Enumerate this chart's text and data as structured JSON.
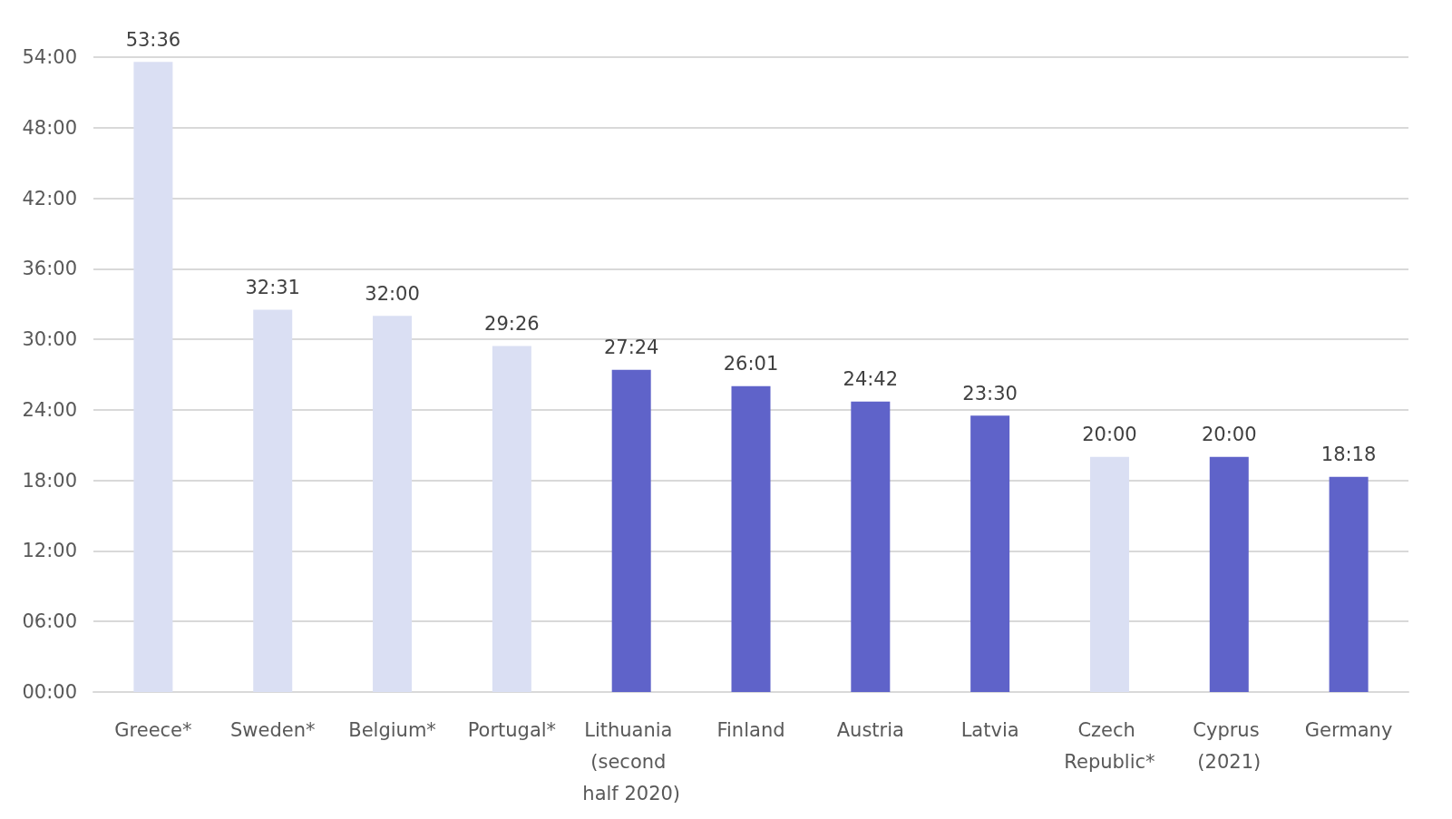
{
  "chart_data": {
    "type": "bar",
    "categories": [
      "Greece*",
      "Sweden*",
      "Belgium*",
      "Portugal*",
      "Lithuania (second half 2020)",
      "Finland",
      "Austria",
      "Latvia",
      "Czech Republic*",
      "Cyprus (2021)",
      "Germany"
    ],
    "values": [
      53.6,
      32.517,
      32,
      29.433,
      27.4,
      26.017,
      24.7,
      23.5,
      20,
      20,
      18.3
    ],
    "value_labels": [
      "53:36",
      "32:31",
      "32:00",
      "29:26",
      "27:24",
      "26:01",
      "24:42",
      "23:30",
      "20:00",
      "20:00",
      "18:18"
    ],
    "colors": [
      "#dadff3",
      "#dadff3",
      "#dadff3",
      "#dadff3",
      "#5f63c9",
      "#5f63c9",
      "#5f63c9",
      "#5f63c9",
      "#dadff3",
      "#5f63c9",
      "#5f63c9"
    ],
    "ylim": [
      0,
      54
    ],
    "yticks": [
      {
        "value": 0,
        "label": "00:00"
      },
      {
        "value": 6,
        "label": "06:00"
      },
      {
        "value": 12,
        "label": "12:00"
      },
      {
        "value": 18,
        "label": "18:00"
      },
      {
        "value": 24,
        "label": "24:00"
      },
      {
        "value": 30,
        "label": "30:00"
      },
      {
        "value": 36,
        "label": "36:00"
      },
      {
        "value": 42,
        "label": "42:00"
      },
      {
        "value": 48,
        "label": "48:00"
      },
      {
        "value": 54,
        "label": "54:00"
      }
    ],
    "grid": "y"
  }
}
